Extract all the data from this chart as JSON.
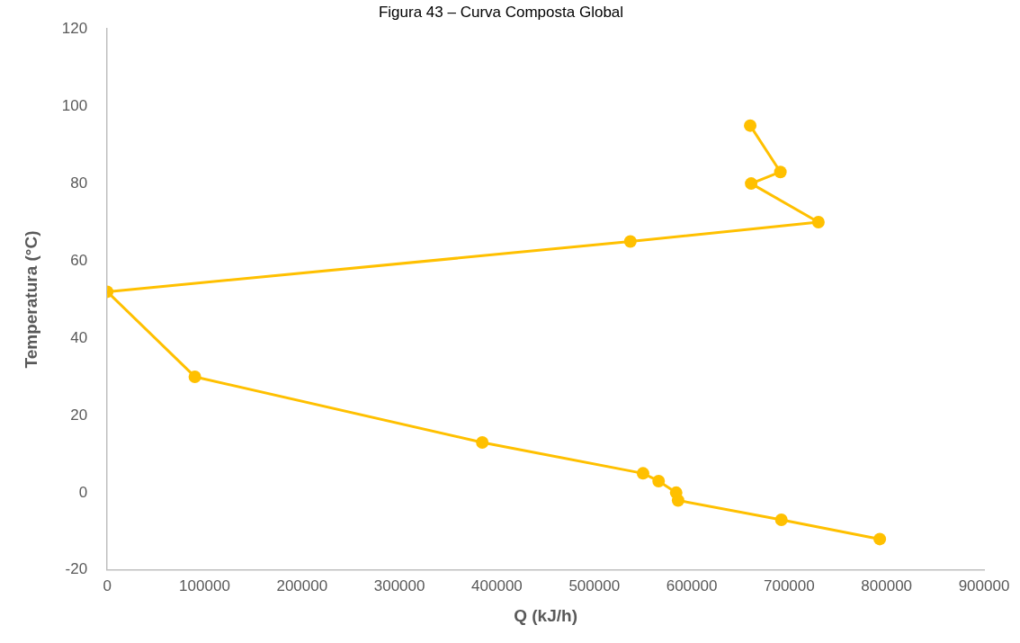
{
  "chart_data": {
    "type": "line",
    "title": "Figura 43 – Curva Composta Global",
    "xlabel": "Q (kJ/h)",
    "ylabel": "Temperatura (°C)",
    "series": [
      {
        "color": "#ffc000",
        "x": [
          660000,
          691000,
          661000,
          730000,
          537000,
          0,
          90000,
          385000,
          550000,
          566000,
          584000,
          586000,
          692000,
          793000
        ],
        "values": [
          95,
          83,
          80,
          70,
          65,
          52,
          30,
          13,
          5,
          3,
          0,
          -2,
          -7,
          -12
        ]
      }
    ],
    "xlim": [
      0,
      900000
    ],
    "xticks": [
      0,
      100000,
      200000,
      300000,
      400000,
      500000,
      600000,
      700000,
      800000,
      900000
    ],
    "ylim": [
      -20,
      120
    ],
    "yticks": [
      -20,
      0,
      20,
      40,
      60,
      80,
      100,
      120
    ],
    "grid": false,
    "legend": false,
    "marker": "circle",
    "line_style": "solid"
  }
}
